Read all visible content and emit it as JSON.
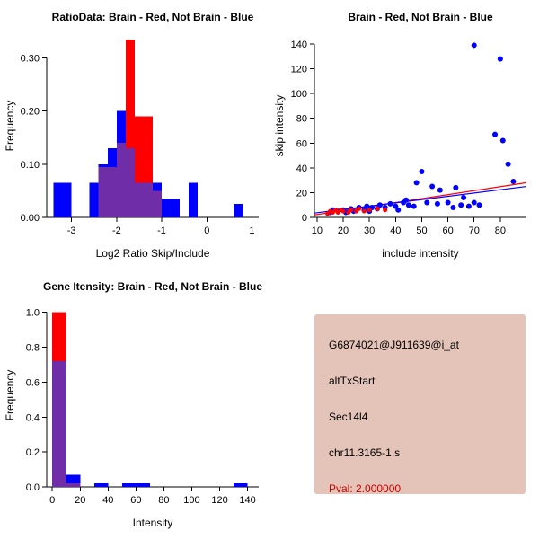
{
  "page": {
    "background": "#ffffff"
  },
  "chart_data": [
    {
      "type": "histogram",
      "id": "chart-ratio",
      "title": "RatioData: Brain - Red, Not Brain - Blue",
      "xlabel": "Log2 Ratio Skip/Include",
      "ylabel": "Frequency",
      "xlim": [
        -3.55,
        1.15
      ],
      "ylim": [
        0,
        0.345
      ],
      "xticks": [
        -3,
        -2,
        -1,
        0,
        1
      ],
      "xtick_labels": [
        "-3",
        "-2",
        "-1",
        "0",
        "1"
      ],
      "yticks": [
        0,
        0.1,
        0.2,
        0.3
      ],
      "ytick_labels": [
        "0.00",
        "0.10",
        "0.20",
        "0.30"
      ],
      "bin_width": 0.2,
      "overlap_color": "#6f2da8",
      "series": [
        {
          "name": "not-brain",
          "color": "#0000ff",
          "bins": [
            {
              "x": -3.4,
              "h": 0.065
            },
            {
              "x": -3.2,
              "h": 0.065
            },
            {
              "x": -2.6,
              "h": 0.065
            },
            {
              "x": -2.4,
              "h": 0.1
            },
            {
              "x": -2.2,
              "h": 0.13
            },
            {
              "x": -2.0,
              "h": 0.2
            },
            {
              "x": -1.8,
              "h": 0.13
            },
            {
              "x": -1.6,
              "h": 0.065
            },
            {
              "x": -1.4,
              "h": 0.065
            },
            {
              "x": -1.2,
              "h": 0.065
            },
            {
              "x": -1.0,
              "h": 0.035
            },
            {
              "x": -0.8,
              "h": 0.035
            },
            {
              "x": -0.4,
              "h": 0.065
            },
            {
              "x": 0.6,
              "h": 0.025
            }
          ]
        },
        {
          "name": "brain",
          "color": "#ff0000",
          "bins": [
            {
              "x": -2.4,
              "h": 0.095
            },
            {
              "x": -2.2,
              "h": 0.095
            },
            {
              "x": -2.0,
              "h": 0.14
            },
            {
              "x": -1.8,
              "h": 0.335
            },
            {
              "x": -1.6,
              "h": 0.19
            },
            {
              "x": -1.4,
              "h": 0.19
            },
            {
              "x": -1.2,
              "h": 0.05
            }
          ]
        }
      ]
    },
    {
      "type": "scatter",
      "id": "chart-scatter",
      "title": "Brain - Red, Not Brain - Blue",
      "xlabel": "include intensity",
      "ylabel": "skip intensity",
      "xlim": [
        9,
        90
      ],
      "ylim": [
        0,
        148
      ],
      "xticks": [
        10,
        20,
        30,
        40,
        50,
        60,
        70,
        80
      ],
      "yticks": [
        0,
        20,
        40,
        60,
        80,
        100,
        120,
        140
      ],
      "series": [
        {
          "name": "not-brain",
          "color": "#0000ff",
          "r": 3,
          "points": [
            [
              15,
              4
            ],
            [
              16,
              6
            ],
            [
              18,
              5
            ],
            [
              20,
              6
            ],
            [
              21,
              4
            ],
            [
              23,
              7
            ],
            [
              24,
              5
            ],
            [
              26,
              8
            ],
            [
              28,
              6
            ],
            [
              29,
              9
            ],
            [
              30,
              5
            ],
            [
              31,
              8
            ],
            [
              33,
              7
            ],
            [
              34,
              10
            ],
            [
              36,
              8
            ],
            [
              38,
              11
            ],
            [
              40,
              9
            ],
            [
              41,
              6
            ],
            [
              43,
              12
            ],
            [
              44,
              14
            ],
            [
              45,
              10
            ],
            [
              47,
              9
            ],
            [
              48,
              28
            ],
            [
              50,
              37
            ],
            [
              52,
              12
            ],
            [
              54,
              25
            ],
            [
              56,
              11
            ],
            [
              57,
              22
            ],
            [
              60,
              12
            ],
            [
              62,
              8
            ],
            [
              63,
              24
            ],
            [
              65,
              10
            ],
            [
              66,
              16
            ],
            [
              68,
              9
            ],
            [
              70,
              12
            ],
            [
              70,
              139
            ],
            [
              72,
              10
            ],
            [
              80,
              128
            ],
            [
              78,
              67
            ],
            [
              81,
              62
            ],
            [
              83,
              43
            ],
            [
              85,
              29
            ]
          ]
        },
        {
          "name": "brain",
          "color": "#ff0000",
          "r": 2.5,
          "points": [
            [
              14,
              3
            ],
            [
              15,
              5
            ],
            [
              16,
              4
            ],
            [
              17,
              6
            ],
            [
              18,
              4
            ],
            [
              19,
              6
            ],
            [
              20,
              5
            ],
            [
              22,
              4
            ],
            [
              23,
              6
            ],
            [
              25,
              5
            ],
            [
              26,
              7
            ],
            [
              28,
              5
            ],
            [
              30,
              6
            ],
            [
              33,
              7
            ],
            [
              36,
              6
            ]
          ]
        }
      ],
      "lines": [
        {
          "name": "brain-fit",
          "color": "#ff0000",
          "points": [
            [
              9,
              2
            ],
            [
              90,
              28
            ]
          ]
        },
        {
          "name": "not-brain-fit",
          "color": "#0000ff",
          "points": [
            [
              9,
              3.5
            ],
            [
              90,
              25
            ]
          ]
        }
      ]
    },
    {
      "type": "histogram",
      "id": "chart-gene",
      "title": "Gene Itensity: Brain - Red, Not Brain - Blue",
      "xlabel": "Intensity",
      "ylabel": "Frequency",
      "xlim": [
        -4,
        148
      ],
      "ylim": [
        0,
        1.05
      ],
      "xticks": [
        0,
        20,
        40,
        60,
        80,
        100,
        120,
        140
      ],
      "xtick_labels": [
        "0",
        "20",
        "40",
        "60",
        "80",
        "100",
        "120",
        "140"
      ],
      "yticks": [
        0,
        0.2,
        0.4,
        0.6,
        0.8,
        1.0
      ],
      "ytick_labels": [
        "0.0",
        "0.2",
        "0.4",
        "0.6",
        "0.8",
        "1.0"
      ],
      "bin_width": 10,
      "overlap_color": "#6f2da8",
      "series": [
        {
          "name": "not-brain",
          "color": "#0000ff",
          "bins": [
            {
              "x": 0,
              "h": 0.72
            },
            {
              "x": 10,
              "h": 0.07
            },
            {
              "x": 30,
              "h": 0.02
            },
            {
              "x": 50,
              "h": 0.02
            },
            {
              "x": 60,
              "h": 0.02
            },
            {
              "x": 130,
              "h": 0.02
            }
          ]
        },
        {
          "name": "brain",
          "color": "#ff0000",
          "bins": [
            {
              "x": 0,
              "h": 1.0
            },
            {
              "x": 10,
              "h": 0.02
            }
          ]
        }
      ]
    }
  ],
  "info_box": {
    "background": "#e4c4b8",
    "lines": [
      {
        "text": "G6874021@J911639@i_at",
        "color": "#000000"
      },
      {
        "text": "altTxStart",
        "color": "#000000"
      },
      {
        "text": "Sec14l4",
        "color": "#000000"
      },
      {
        "text": "chr11.3165-1.s",
        "color": "#000000"
      },
      {
        "text": "Pval: 2.000000",
        "color": "#cd0000"
      }
    ]
  }
}
